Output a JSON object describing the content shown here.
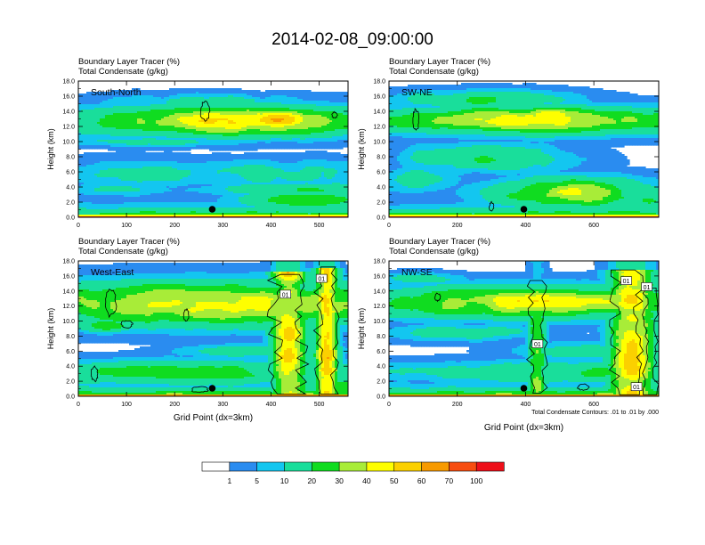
{
  "title": "2014-02-08_09:00:00",
  "colors": {
    "axis": "#000000",
    "contour": "#000000",
    "marker": "#000000"
  },
  "chart_data": [
    {
      "type": "heatmap",
      "name": "South-North",
      "label": "South-North",
      "subtitle_line1": "Boundary Layer Tracer   (%)",
      "subtitle_line2": "Total Condensate   (g/kg)",
      "ylabel": "Height (km)",
      "xlabel": "",
      "xlim": [
        0,
        560
      ],
      "ylim": [
        0,
        18
      ],
      "xticks": [
        "0",
        "100",
        "200",
        "300",
        "400",
        "500"
      ],
      "xtick_values": [
        0,
        100,
        200,
        300,
        400,
        500
      ],
      "yticks": [
        "0.0",
        "2.0",
        "4.0",
        "6.0",
        "8.0",
        "10.0",
        "12.0",
        "14.0",
        "16.0",
        "18.0"
      ],
      "marker_x": 278,
      "contour_labels": []
    },
    {
      "type": "heatmap",
      "name": "SW-NE",
      "label": "SW-NE",
      "subtitle_line1": "Boundary Layer Tracer   (%)",
      "subtitle_line2": "Total Condensate   (g/kg)",
      "ylabel": "Height (km)",
      "xlabel": "",
      "xlim": [
        0,
        790
      ],
      "ylim": [
        0,
        18
      ],
      "xticks": [
        "0",
        "200",
        "400",
        "600"
      ],
      "xtick_values": [
        0,
        200,
        400,
        600
      ],
      "yticks": [
        "0.0",
        "2.0",
        "4.0",
        "6.0",
        "8.0",
        "10.0",
        "12.0",
        "14.0",
        "16.0",
        "18.0"
      ],
      "marker_x": 395,
      "contour_labels": []
    },
    {
      "type": "heatmap",
      "name": "West-East",
      "label": "West-East",
      "subtitle_line1": "Boundary Layer Tracer   (%)",
      "subtitle_line2": "Total Condensate   (g/kg)",
      "ylabel": "Height (km)",
      "xlabel": "Grid Point (dx=3km)",
      "xlim": [
        0,
        560
      ],
      "ylim": [
        0,
        18
      ],
      "xticks": [
        "0",
        "100",
        "200",
        "300",
        "400",
        "500"
      ],
      "xtick_values": [
        0,
        100,
        200,
        300,
        400,
        500
      ],
      "yticks": [
        "0.0",
        "2.0",
        "4.0",
        "6.0",
        "8.0",
        "10.0",
        "12.0",
        "14.0",
        "16.0",
        "18.0"
      ],
      "marker_x": 278,
      "contour_labels": [
        {
          "text": "01",
          "x": 430,
          "y": 13.4
        },
        {
          "text": "01",
          "x": 505,
          "y": 15.5
        }
      ]
    },
    {
      "type": "heatmap",
      "name": "NW-SE",
      "label": "NW-SE",
      "subtitle_line1": "Boundary Layer Tracer   (%)",
      "subtitle_line2": "Total Condensate   (g/kg)",
      "ylabel": "Height (km)",
      "xlabel": "Grid Point (dx=3km)",
      "footnote": "Total Condensate Contours: .01 to .01 by .000",
      "xlim": [
        0,
        790
      ],
      "ylim": [
        0,
        18
      ],
      "xticks": [
        "0",
        "200",
        "400",
        "600"
      ],
      "xtick_values": [
        0,
        200,
        400,
        600
      ],
      "yticks": [
        "0.0",
        "2.0",
        "4.0",
        "6.0",
        "8.0",
        "10.0",
        "12.0",
        "14.0",
        "16.0",
        "18.0"
      ],
      "marker_x": 395,
      "contour_labels": [
        {
          "text": "01",
          "x": 435,
          "y": 6.8
        },
        {
          "text": "01",
          "x": 695,
          "y": 15.2
        },
        {
          "text": "01",
          "x": 755,
          "y": 14.4
        },
        {
          "text": "01",
          "x": 725,
          "y": 1.1
        }
      ]
    }
  ],
  "colorbar": {
    "labels": [
      "1",
      "5",
      "10",
      "20",
      "30",
      "40",
      "50",
      "60",
      "70",
      "100"
    ],
    "colors": [
      "#ffffff",
      "#2a8cf0",
      "#13c6f0",
      "#19de9b",
      "#10dc20",
      "#a8ec38",
      "#fefe00",
      "#fbd000",
      "#f79a00",
      "#f74d10",
      "#ee0f19"
    ]
  }
}
